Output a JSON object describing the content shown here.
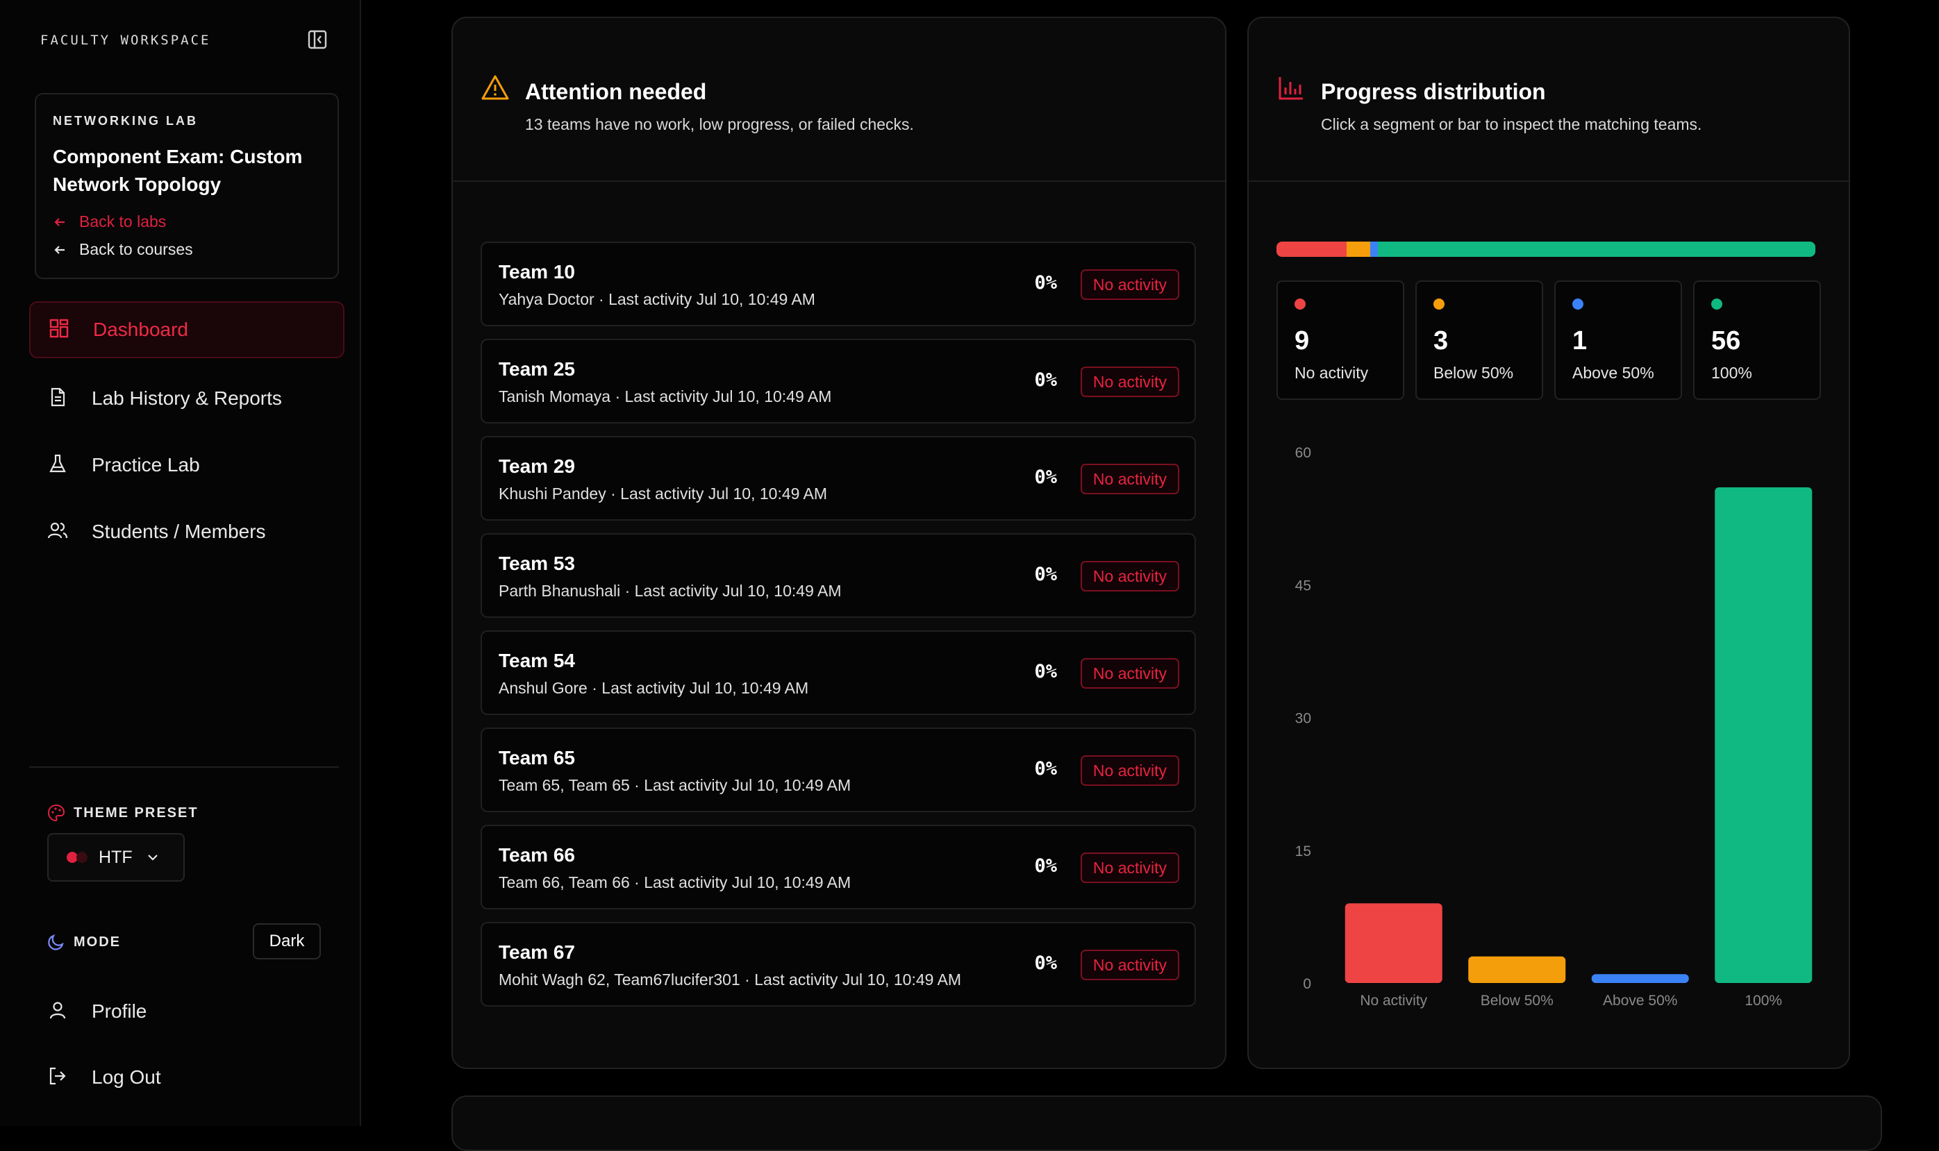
{
  "sidebar": {
    "workspace_label": "FACULTY WORKSPACE",
    "lab_tag": "NETWORKING LAB",
    "lab_title": "Component Exam: Custom Network Topology",
    "back_to_labs": "Back to labs",
    "back_to_courses": "Back to courses",
    "nav": [
      {
        "label": "Dashboard",
        "icon": "dashboard-icon",
        "active": true
      },
      {
        "label": "Lab History & Reports",
        "icon": "document-icon",
        "active": false
      },
      {
        "label": "Practice Lab",
        "icon": "flask-icon",
        "active": false
      },
      {
        "label": "Students / Members",
        "icon": "users-icon",
        "active": false
      }
    ],
    "theme_label": "THEME PRESET",
    "theme_value": "HTF",
    "mode_label": "MODE",
    "mode_value": "Dark",
    "profile": "Profile",
    "logout": "Log Out"
  },
  "attention": {
    "title": "Attention needed",
    "subtitle": "13 teams have no work, low progress, or failed checks.",
    "teams": [
      {
        "name": "Team 10",
        "meta": "Yahya Doctor · Last activity Jul 10, 10:49 AM",
        "pct": "0%",
        "status": "No activity"
      },
      {
        "name": "Team 25",
        "meta": "Tanish Momaya · Last activity Jul 10, 10:49 AM",
        "pct": "0%",
        "status": "No activity"
      },
      {
        "name": "Team 29",
        "meta": "Khushi Pandey · Last activity Jul 10, 10:49 AM",
        "pct": "0%",
        "status": "No activity"
      },
      {
        "name": "Team 53",
        "meta": "Parth Bhanushali · Last activity Jul 10, 10:49 AM",
        "pct": "0%",
        "status": "No activity"
      },
      {
        "name": "Team 54",
        "meta": "Anshul Gore · Last activity Jul 10, 10:49 AM",
        "pct": "0%",
        "status": "No activity"
      },
      {
        "name": "Team 65",
        "meta": "Team 65, Team 65 · Last activity Jul 10, 10:49 AM",
        "pct": "0%",
        "status": "No activity"
      },
      {
        "name": "Team 66",
        "meta": "Team 66, Team 66 · Last activity Jul 10, 10:49 AM",
        "pct": "0%",
        "status": "No activity"
      },
      {
        "name": "Team 67",
        "meta": "Mohit Wagh 62, Team67lucifer301 · Last activity Jul 10, 10:49 AM",
        "pct": "0%",
        "status": "No activity"
      }
    ]
  },
  "distribution": {
    "title": "Progress distribution",
    "subtitle": "Click a segment or bar to inspect the matching teams.",
    "stats": [
      {
        "count": "9",
        "label": "No activity",
        "color": "#ef4444"
      },
      {
        "count": "3",
        "label": "Below 50%",
        "color": "#f59e0b"
      },
      {
        "count": "1",
        "label": "Above 50%",
        "color": "#3b82f6"
      },
      {
        "count": "56",
        "label": "100%",
        "color": "#10b981"
      }
    ]
  },
  "chart_data": {
    "type": "bar",
    "categories": [
      "No activity",
      "Below 50%",
      "Above 50%",
      "100%"
    ],
    "values": [
      9,
      3,
      1,
      56
    ],
    "colors": [
      "#ef4444",
      "#f59e0b",
      "#3b82f6",
      "#10b981"
    ],
    "yticks": [
      "0",
      "15",
      "30",
      "45",
      "60"
    ],
    "ylim": [
      0,
      60
    ],
    "title": "",
    "xlabel": "",
    "ylabel": ""
  },
  "colors": {
    "accent": "#e0213f",
    "background": "#000000",
    "panel": "#0a0a0a"
  }
}
